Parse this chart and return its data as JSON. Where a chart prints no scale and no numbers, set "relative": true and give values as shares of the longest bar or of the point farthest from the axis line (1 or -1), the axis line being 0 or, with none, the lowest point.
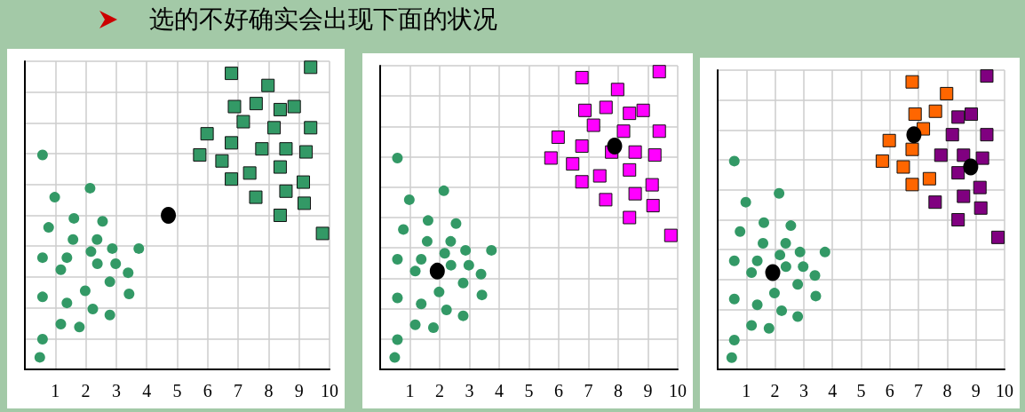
{
  "chart_data": [
    {
      "type": "scatter",
      "title": "选的不好确实会出现下面的状况",
      "relative": true,
      "xlim": [
        0,
        10
      ],
      "xticks": [
        1,
        2,
        3,
        4,
        5,
        6,
        7,
        8,
        9,
        10
      ],
      "tick_labels": "x",
      "grid": true,
      "series": [
        {
          "color": "#339966",
          "marker": "circle",
          "x": [
            0.58,
            0.98,
            2.14,
            0.78,
            1.61,
            2.55,
            1.58,
            2.37,
            2.87,
            3.74,
            2.17,
            0.58,
            1.38,
            1.18,
            2.38,
            2.98,
            3.39,
            2.79,
            3.42,
            1.98,
            0.58,
            1.38,
            2.23,
            2.79,
            1.18,
            1.79,
            0.58,
            0.49
          ],
          "values": [
            0.71,
            0.57,
            0.6,
            0.47,
            0.5,
            0.49,
            0.43,
            0.43,
            0.4,
            0.4,
            0.39,
            0.37,
            0.37,
            0.33,
            0.35,
            0.35,
            0.32,
            0.29,
            0.25,
            0.26,
            0.24,
            0.22,
            0.2,
            0.18,
            0.15,
            0.14,
            0.1,
            0.04
          ]
        },
        {
          "color": "#339966",
          "marker": "square",
          "x": [
            6.78,
            9.38,
            7.98,
            6.88,
            7.59,
            8.38,
            8.84,
            7.17,
            8.18,
            9.38,
            5.98,
            6.78,
            7.78,
            8.57,
            9.23,
            5.74,
            6.47,
            8.38,
            7.38,
            6.78,
            9.14,
            8.57,
            7.58,
            9.17,
            8.38,
            9.77
          ],
          "values": [
            0.98,
            1,
            0.94,
            0.87,
            0.88,
            0.86,
            0.87,
            0.82,
            0.8,
            0.8,
            0.78,
            0.75,
            0.73,
            0.73,
            0.72,
            0.71,
            0.69,
            0.67,
            0.65,
            0.63,
            0.62,
            0.59,
            0.57,
            0.55,
            0.51,
            0.45
          ]
        },
        {
          "color": "#000000",
          "marker": "circle",
          "x": [
            4.71
          ],
          "values": [
            0.51
          ]
        }
      ]
    },
    {
      "type": "scatter",
      "relative": true,
      "xlim": [
        0,
        10
      ],
      "xticks": [
        1,
        2,
        3,
        4,
        5,
        6,
        7,
        8,
        9,
        10
      ],
      "tick_labels": "x",
      "grid": true,
      "series": [
        {
          "color": "#339966",
          "marker": "circle",
          "x": [
            0.58,
            0.98,
            2.14,
            0.78,
            1.61,
            2.55,
            1.58,
            2.37,
            2.87,
            3.74,
            2.17,
            0.58,
            1.38,
            1.18,
            2.38,
            2.98,
            3.39,
            2.79,
            3.42,
            1.98,
            0.58,
            1.38,
            2.23,
            2.79,
            1.18,
            1.79,
            0.58,
            0.49
          ],
          "values": [
            0.71,
            0.57,
            0.6,
            0.47,
            0.5,
            0.49,
            0.43,
            0.43,
            0.4,
            0.4,
            0.39,
            0.37,
            0.37,
            0.33,
            0.35,
            0.35,
            0.32,
            0.29,
            0.25,
            0.26,
            0.24,
            0.22,
            0.2,
            0.18,
            0.15,
            0.14,
            0.1,
            0.04
          ]
        },
        {
          "color": "#ff00ff",
          "marker": "square",
          "x": [
            6.78,
            9.38,
            7.98,
            6.88,
            7.59,
            8.38,
            8.84,
            7.17,
            8.18,
            9.38,
            5.98,
            6.78,
            7.78,
            8.57,
            9.23,
            5.74,
            6.47,
            8.38,
            7.38,
            6.78,
            9.14,
            8.57,
            7.58,
            9.17,
            8.38,
            9.77
          ],
          "values": [
            0.98,
            1,
            0.94,
            0.87,
            0.88,
            0.86,
            0.87,
            0.82,
            0.8,
            0.8,
            0.78,
            0.75,
            0.73,
            0.73,
            0.72,
            0.71,
            0.69,
            0.67,
            0.65,
            0.63,
            0.62,
            0.59,
            0.57,
            0.55,
            0.51,
            0.45
          ]
        },
        {
          "color": "#000000",
          "marker": "circle",
          "x": [
            1.92,
            7.88
          ],
          "values": [
            0.33,
            0.75
          ]
        }
      ]
    },
    {
      "type": "scatter",
      "relative": true,
      "xlim": [
        0,
        10
      ],
      "xticks": [
        1,
        2,
        3,
        4,
        5,
        6,
        7,
        8,
        9,
        10
      ],
      "tick_labels": "x",
      "grid": true,
      "series": [
        {
          "color": "#339966",
          "marker": "circle",
          "x": [
            0.58,
            0.98,
            2.14,
            0.78,
            1.61,
            2.55,
            1.58,
            2.37,
            2.87,
            3.74,
            2.17,
            0.58,
            1.38,
            1.18,
            2.38,
            2.98,
            3.39,
            2.79,
            3.42,
            1.98,
            0.58,
            1.38,
            2.23,
            2.79,
            1.18,
            1.79,
            0.58,
            0.49
          ],
          "values": [
            0.71,
            0.57,
            0.6,
            0.47,
            0.5,
            0.49,
            0.43,
            0.43,
            0.4,
            0.4,
            0.39,
            0.37,
            0.37,
            0.33,
            0.35,
            0.35,
            0.32,
            0.29,
            0.25,
            0.26,
            0.24,
            0.22,
            0.2,
            0.18,
            0.15,
            0.14,
            0.1,
            0.04
          ]
        },
        {
          "color": "#ff6600",
          "marker": "square",
          "x": [
            6.78,
            7.98,
            6.88,
            7.59,
            7.17,
            5.98,
            6.78,
            5.74,
            6.47,
            7.38,
            6.78
          ],
          "values": [
            0.98,
            0.94,
            0.87,
            0.88,
            0.82,
            0.78,
            0.75,
            0.71,
            0.69,
            0.65,
            0.63
          ]
        },
        {
          "color": "#800080",
          "marker": "square",
          "x": [
            9.38,
            8.38,
            8.84,
            8.18,
            9.38,
            7.78,
            8.57,
            9.23,
            8.38,
            9.14,
            8.57,
            7.58,
            9.17,
            8.38,
            9.77
          ],
          "values": [
            1,
            0.86,
            0.87,
            0.8,
            0.8,
            0.73,
            0.73,
            0.72,
            0.67,
            0.62,
            0.59,
            0.57,
            0.55,
            0.51,
            0.45
          ]
        },
        {
          "color": "#000000",
          "marker": "circle",
          "x": [
            1.92,
            6.84,
            8.82
          ],
          "values": [
            0.33,
            0.8,
            0.69
          ]
        }
      ]
    }
  ]
}
